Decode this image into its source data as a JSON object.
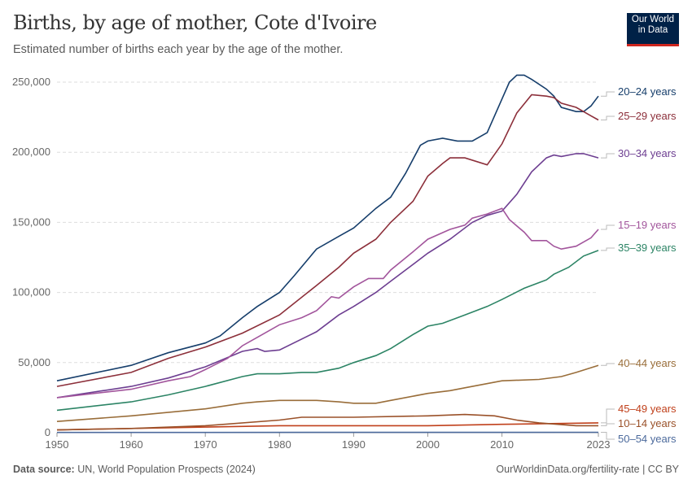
{
  "header": {
    "title": "Births, by age of mother, Cote d'Ivoire",
    "subtitle": "Estimated number of births each year by the age of the mother.",
    "logo": "Our World in Data"
  },
  "footer": {
    "source_label": "Data source:",
    "source": "UN, World Population Prospects (2024)",
    "link": "OurWorldinData.org/fertility-rate | CC BY"
  },
  "chart_data": {
    "type": "line",
    "title": "Births, by age of mother, Cote d'Ivoire",
    "subtitle": "Estimated number of births each year by the age of the mother.",
    "xlim": [
      1950,
      2023
    ],
    "ylim": [
      0,
      250000
    ],
    "x_ticks": [
      "1950",
      "1960",
      "1970",
      "1980",
      "1990",
      "2000",
      "2010",
      "2023"
    ],
    "y_ticks": [
      "0",
      "50,000",
      "100,000",
      "150,000",
      "200,000",
      "250,000"
    ],
    "grid": "horizontal dashed",
    "legend": "right, line-end labels",
    "series": [
      {
        "name": "20–24 years",
        "color": "#163e6b",
        "points": [
          [
            1950,
            37000
          ],
          [
            1960,
            48000
          ],
          [
            1965,
            57000
          ],
          [
            1970,
            64000
          ],
          [
            1972,
            69000
          ],
          [
            1975,
            82000
          ],
          [
            1977,
            90000
          ],
          [
            1980,
            100000
          ],
          [
            1982,
            112000
          ],
          [
            1985,
            131000
          ],
          [
            1988,
            140000
          ],
          [
            1990,
            146000
          ],
          [
            1993,
            160000
          ],
          [
            1995,
            168000
          ],
          [
            1997,
            185000
          ],
          [
            1999,
            205000
          ],
          [
            2000,
            208000
          ],
          [
            2002,
            210000
          ],
          [
            2004,
            208000
          ],
          [
            2006,
            208000
          ],
          [
            2008,
            214000
          ],
          [
            2010,
            238000
          ],
          [
            2011,
            250000
          ],
          [
            2012,
            255000
          ],
          [
            2013,
            255000
          ],
          [
            2014,
            252000
          ],
          [
            2016,
            245000
          ],
          [
            2017,
            240000
          ],
          [
            2018,
            232000
          ],
          [
            2020,
            229000
          ],
          [
            2021,
            229000
          ],
          [
            2022,
            233000
          ],
          [
            2023,
            240000
          ]
        ]
      },
      {
        "name": "25–29 years",
        "color": "#8c2f3a",
        "points": [
          [
            1950,
            33000
          ],
          [
            1960,
            43000
          ],
          [
            1965,
            53000
          ],
          [
            1970,
            61000
          ],
          [
            1975,
            71000
          ],
          [
            1980,
            84000
          ],
          [
            1985,
            105000
          ],
          [
            1988,
            118000
          ],
          [
            1990,
            128000
          ],
          [
            1993,
            138000
          ],
          [
            1995,
            150000
          ],
          [
            1998,
            165000
          ],
          [
            2000,
            183000
          ],
          [
            2002,
            192000
          ],
          [
            2003,
            196000
          ],
          [
            2005,
            196000
          ],
          [
            2008,
            191000
          ],
          [
            2010,
            206000
          ],
          [
            2012,
            228000
          ],
          [
            2014,
            241000
          ],
          [
            2016,
            240000
          ],
          [
            2017,
            239000
          ],
          [
            2018,
            235000
          ],
          [
            2020,
            232000
          ],
          [
            2022,
            226000
          ],
          [
            2023,
            223000
          ]
        ]
      },
      {
        "name": "30–34 years",
        "color": "#6d3e91",
        "points": [
          [
            1950,
            25000
          ],
          [
            1960,
            33000
          ],
          [
            1965,
            39000
          ],
          [
            1970,
            47000
          ],
          [
            1975,
            58000
          ],
          [
            1977,
            60000
          ],
          [
            1978,
            58000
          ],
          [
            1980,
            59000
          ],
          [
            1985,
            72000
          ],
          [
            1988,
            84000
          ],
          [
            1990,
            90000
          ],
          [
            1993,
            100000
          ],
          [
            1995,
            108000
          ],
          [
            1998,
            120000
          ],
          [
            2000,
            128000
          ],
          [
            2003,
            138000
          ],
          [
            2006,
            150000
          ],
          [
            2008,
            155000
          ],
          [
            2010,
            158000
          ],
          [
            2012,
            170000
          ],
          [
            2014,
            186000
          ],
          [
            2016,
            196000
          ],
          [
            2017,
            198000
          ],
          [
            2018,
            197000
          ],
          [
            2020,
            199000
          ],
          [
            2021,
            199000
          ],
          [
            2023,
            196000
          ]
        ]
      },
      {
        "name": "15–19 years",
        "color": "#a2559c",
        "points": [
          [
            1950,
            25000
          ],
          [
            1960,
            31000
          ],
          [
            1965,
            37000
          ],
          [
            1968,
            40000
          ],
          [
            1970,
            45000
          ],
          [
            1973,
            53000
          ],
          [
            1975,
            62000
          ],
          [
            1977,
            68000
          ],
          [
            1980,
            77000
          ],
          [
            1983,
            82000
          ],
          [
            1985,
            87000
          ],
          [
            1987,
            97000
          ],
          [
            1988,
            96000
          ],
          [
            1990,
            104000
          ],
          [
            1992,
            110000
          ],
          [
            1994,
            110000
          ],
          [
            1995,
            116000
          ],
          [
            1998,
            129000
          ],
          [
            2000,
            138000
          ],
          [
            2003,
            145000
          ],
          [
            2005,
            148000
          ],
          [
            2006,
            153000
          ],
          [
            2008,
            156000
          ],
          [
            2010,
            160000
          ],
          [
            2011,
            152000
          ],
          [
            2013,
            143000
          ],
          [
            2014,
            137000
          ],
          [
            2016,
            137000
          ],
          [
            2017,
            133000
          ],
          [
            2018,
            131000
          ],
          [
            2020,
            133000
          ],
          [
            2022,
            139000
          ],
          [
            2023,
            145000
          ]
        ]
      },
      {
        "name": "35–39 years",
        "color": "#2c8465",
        "points": [
          [
            1950,
            16000
          ],
          [
            1960,
            22000
          ],
          [
            1965,
            27000
          ],
          [
            1970,
            33000
          ],
          [
            1975,
            40000
          ],
          [
            1977,
            42000
          ],
          [
            1980,
            42000
          ],
          [
            1983,
            43000
          ],
          [
            1985,
            43000
          ],
          [
            1988,
            46000
          ],
          [
            1990,
            50000
          ],
          [
            1993,
            55000
          ],
          [
            1995,
            60000
          ],
          [
            1998,
            70000
          ],
          [
            2000,
            76000
          ],
          [
            2002,
            78000
          ],
          [
            2005,
            84000
          ],
          [
            2008,
            90000
          ],
          [
            2010,
            95000
          ],
          [
            2013,
            103000
          ],
          [
            2015,
            107000
          ],
          [
            2016,
            109000
          ],
          [
            2017,
            113000
          ],
          [
            2019,
            118000
          ],
          [
            2021,
            126000
          ],
          [
            2023,
            130000
          ]
        ]
      },
      {
        "name": "40–44 years",
        "color": "#996d39",
        "points": [
          [
            1950,
            8000
          ],
          [
            1960,
            12000
          ],
          [
            1970,
            17000
          ],
          [
            1975,
            21000
          ],
          [
            1977,
            22000
          ],
          [
            1980,
            23000
          ],
          [
            1985,
            23000
          ],
          [
            1988,
            22000
          ],
          [
            1990,
            21000
          ],
          [
            1993,
            21000
          ],
          [
            1995,
            23000
          ],
          [
            2000,
            28000
          ],
          [
            2003,
            30000
          ],
          [
            2005,
            32000
          ],
          [
            2010,
            37000
          ],
          [
            2015,
            38000
          ],
          [
            2018,
            40000
          ],
          [
            2020,
            43000
          ],
          [
            2023,
            48000
          ]
        ]
      },
      {
        "name": "45–49 years",
        "color": "#c0401b",
        "points": [
          [
            1950,
            2000
          ],
          [
            1970,
            4000
          ],
          [
            1980,
            5000
          ],
          [
            1990,
            5000
          ],
          [
            2000,
            5000
          ],
          [
            2010,
            6000
          ],
          [
            2023,
            7000
          ]
        ]
      },
      {
        "name": "10–14 years",
        "color": "#9a5129",
        "points": [
          [
            1950,
            2000
          ],
          [
            1960,
            3000
          ],
          [
            1970,
            5000
          ],
          [
            1980,
            9000
          ],
          [
            1983,
            11000
          ],
          [
            1990,
            11000
          ],
          [
            2000,
            12000
          ],
          [
            2005,
            13000
          ],
          [
            2009,
            12000
          ],
          [
            2012,
            9000
          ],
          [
            2015,
            7000
          ],
          [
            2020,
            5000
          ],
          [
            2023,
            5000
          ]
        ]
      },
      {
        "name": "50–54 years",
        "color": "#4c6a9c",
        "points": [
          [
            1950,
            200
          ],
          [
            2023,
            300
          ]
        ]
      }
    ]
  }
}
